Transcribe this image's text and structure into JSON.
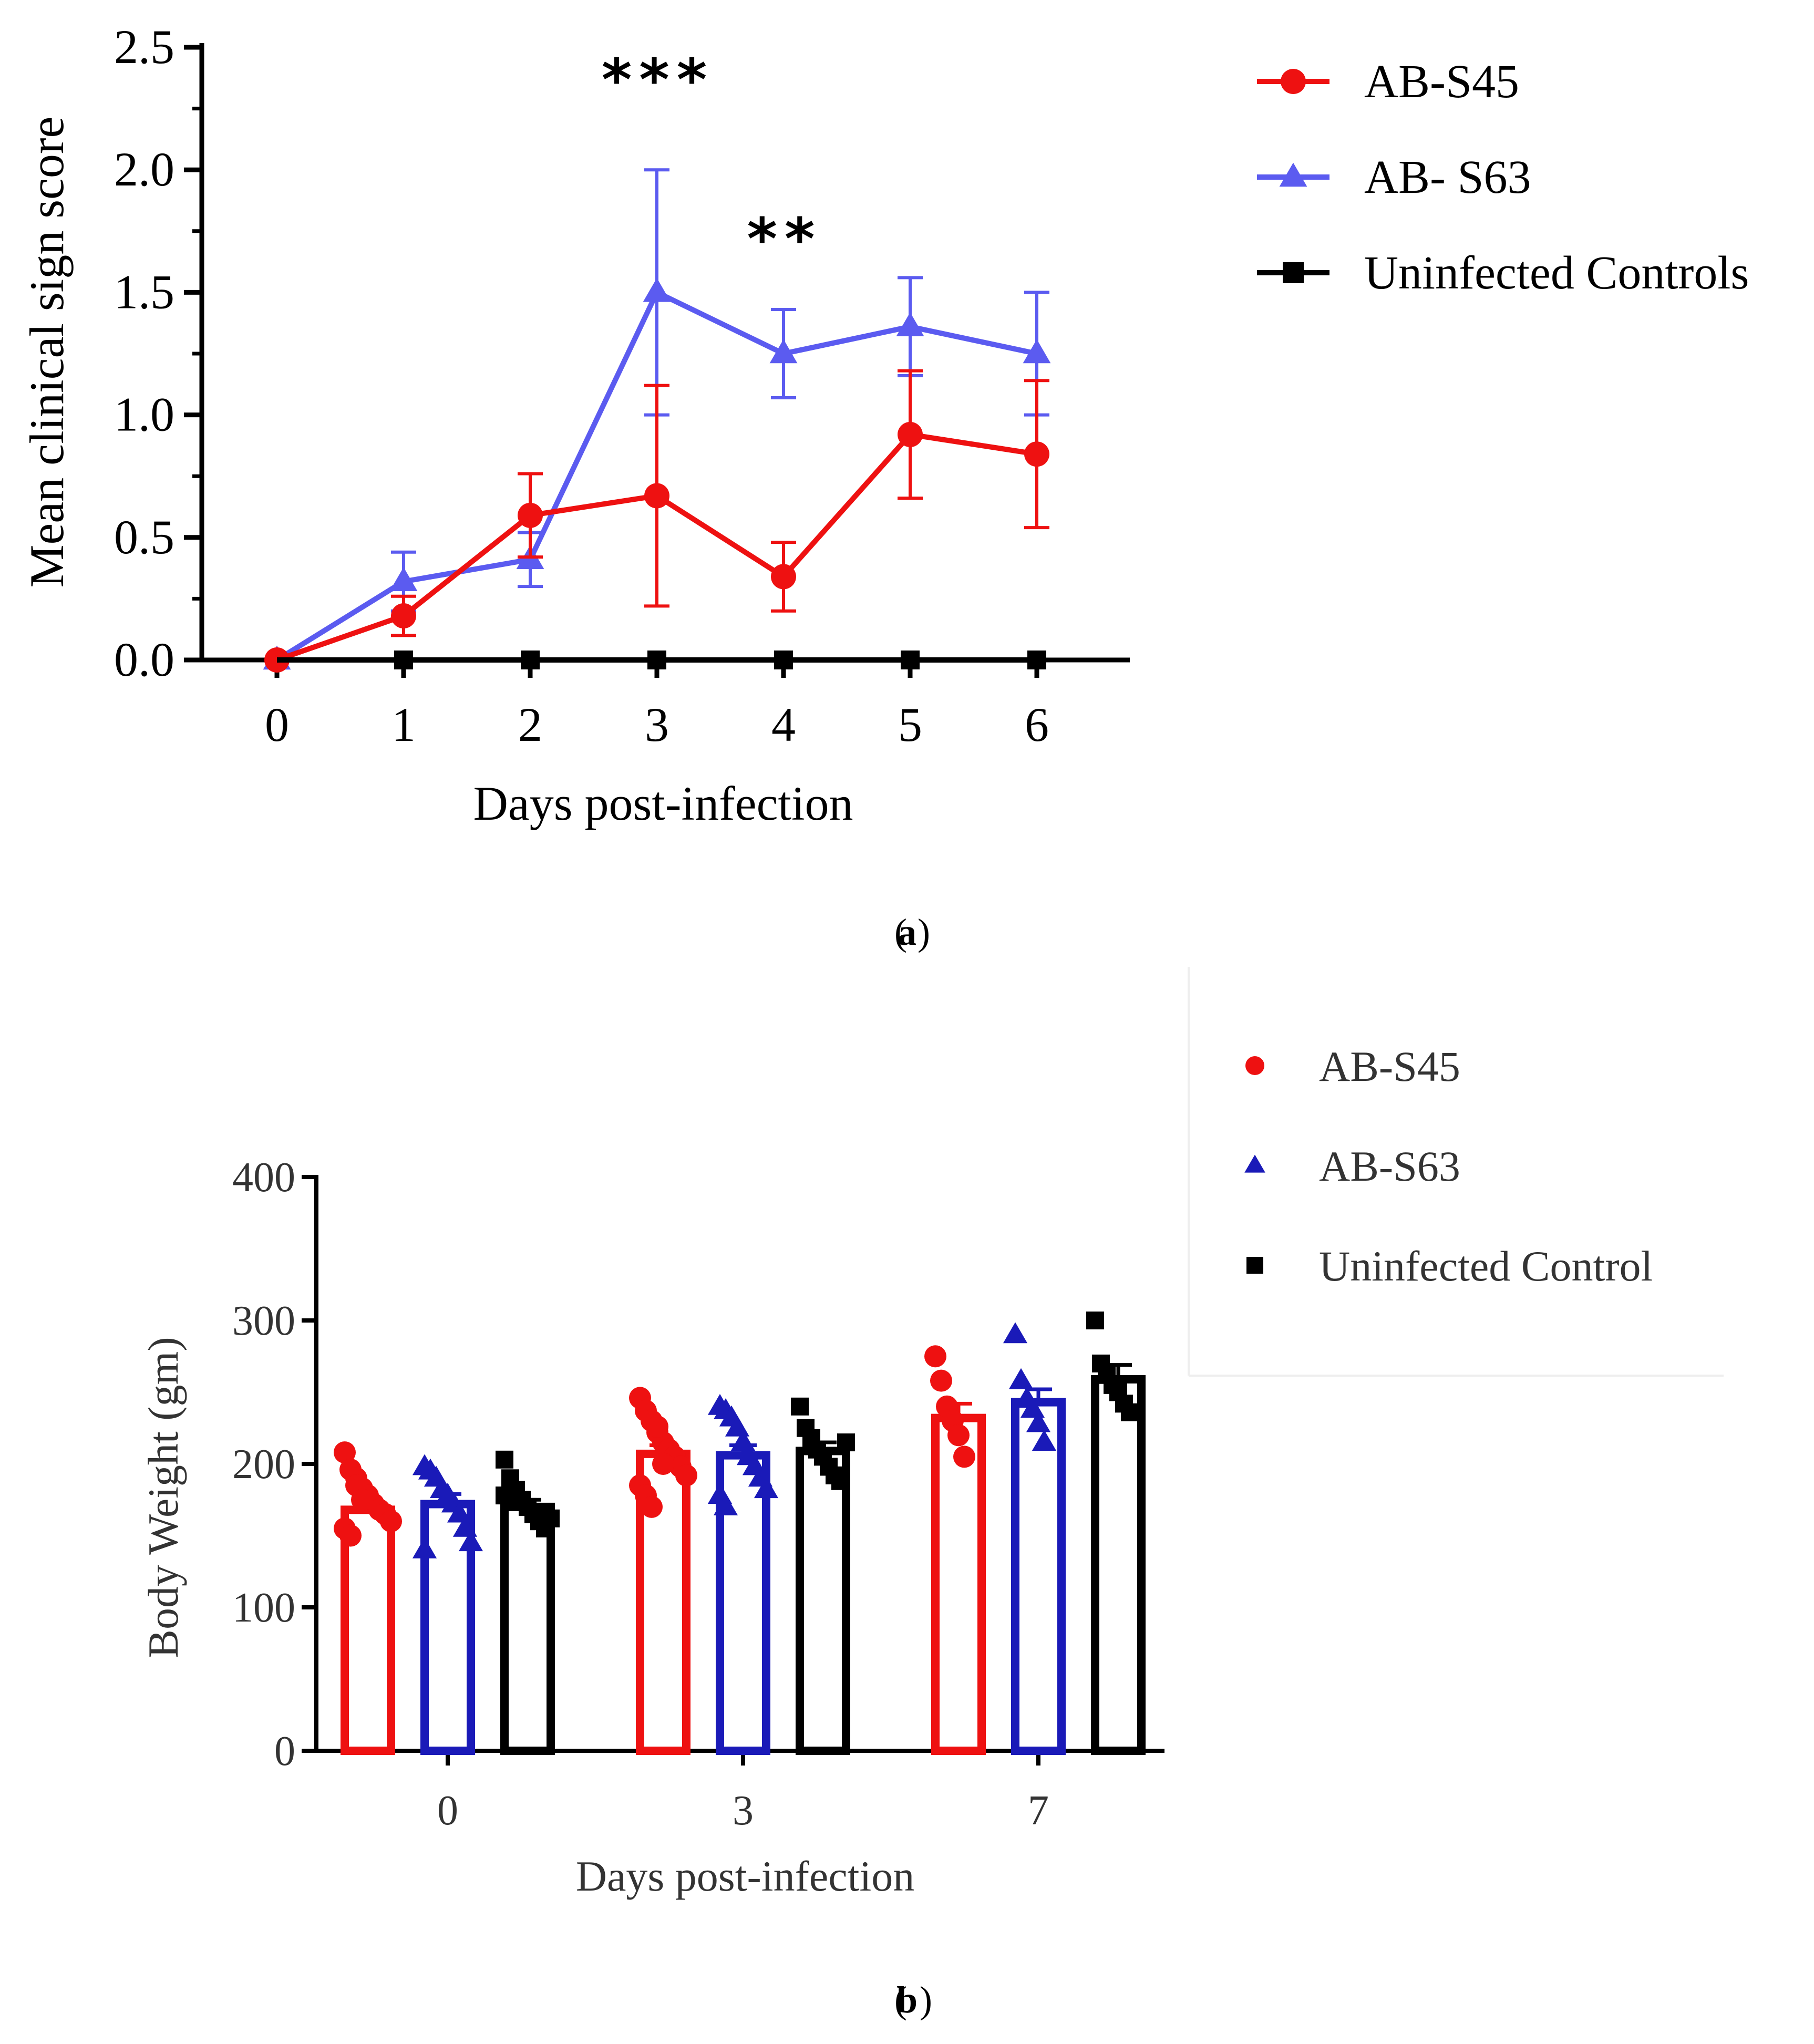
{
  "chart_data": [
    {
      "type": "line",
      "panel_label": "a",
      "xlabel": "Days post-infection",
      "ylabel": "Mean clinical sign score",
      "x": [
        0,
        1,
        2,
        3,
        4,
        5,
        6
      ],
      "x_tick_labels": [
        "0",
        "1",
        "2",
        "3",
        "4",
        "5",
        "6"
      ],
      "ylim": [
        0,
        2.5
      ],
      "y_tick_labels": [
        "0.0",
        "0.5",
        "1.0",
        "1.5",
        "2.0",
        "2.5"
      ],
      "legend_position": "top-right, outside plot",
      "series": [
        {
          "name": "AB-S45",
          "color": "#ee1111",
          "marker": "circle",
          "values": [
            0.0,
            0.18,
            0.59,
            0.67,
            0.34,
            0.92,
            0.84
          ],
          "error": [
            0.0,
            0.08,
            0.17,
            0.45,
            0.14,
            0.26,
            0.3
          ]
        },
        {
          "name": "AB- S63",
          "color": "#5b5bf0",
          "marker": "triangle",
          "values": [
            0.0,
            0.32,
            0.41,
            1.5,
            1.25,
            1.36,
            1.25
          ],
          "error": [
            0.0,
            0.12,
            0.11,
            0.5,
            0.18,
            0.2,
            0.25
          ]
        },
        {
          "name": "Uninfected Controls",
          "color": "#000000",
          "marker": "square",
          "values": [
            0,
            0,
            0,
            0,
            0,
            0,
            0
          ],
          "error": [
            0,
            0,
            0,
            0,
            0,
            0,
            0
          ]
        }
      ],
      "annotations": [
        {
          "text": "***",
          "x": 3,
          "y": 2.35
        },
        {
          "text": "**",
          "x": 4,
          "y": 1.7
        }
      ]
    },
    {
      "type": "bar",
      "panel_label": "b",
      "xlabel": "Days post-infection",
      "ylabel": "Body Weight (gm)",
      "categories": [
        "0",
        "3",
        "7"
      ],
      "ylim": [
        0,
        400
      ],
      "y_tick_labels": [
        "0",
        "100",
        "200",
        "300",
        "400"
      ],
      "legend_position": "top-right, outside plot",
      "series": [
        {
          "name": "AB-S45",
          "color": "#ee1111",
          "marker": "circle",
          "values": [
            168,
            207,
            232
          ],
          "error": [
            6,
            6,
            10
          ],
          "points": [
            [
              208,
              196,
              190,
              183,
              178,
              172,
              168,
              165,
              160,
              155,
              150,
              185,
              175
            ],
            [
              246,
              237,
              230,
              222,
              215,
              210,
              205,
              198,
              192,
              185,
              178,
              170,
              226,
              200
            ],
            [
              275,
              258,
              240,
              230,
              220,
              205
            ]
          ]
        },
        {
          "name": "AB-S63",
          "color": "#1a1ab8",
          "marker": "triangle",
          "values": [
            172,
            206,
            243
          ],
          "error": [
            7,
            7,
            9
          ],
          "points": [
            [
              198,
              195,
              190,
              182,
              178,
              172,
              165,
              155,
              145,
              140
            ],
            [
              240,
              237,
              232,
              225,
              215,
              205,
              198,
              190,
              182,
              178,
              170
            ],
            [
              290,
              258,
              245,
              238,
              228,
              215
            ]
          ]
        },
        {
          "name": "Uninfected Control",
          "color": "#000000",
          "marker": "square",
          "values": [
            170,
            209,
            259
          ],
          "error": [
            5,
            6,
            10
          ],
          "points": [
            [
              203,
              190,
              182,
              175,
              170,
              165,
              160,
              155,
              162,
              178
            ],
            [
              240,
              225,
              218,
              210,
              205,
              198,
              192,
              188,
              215
            ],
            [
              300,
              270,
              262,
              255,
              250,
              242,
              236
            ]
          ]
        }
      ]
    }
  ]
}
